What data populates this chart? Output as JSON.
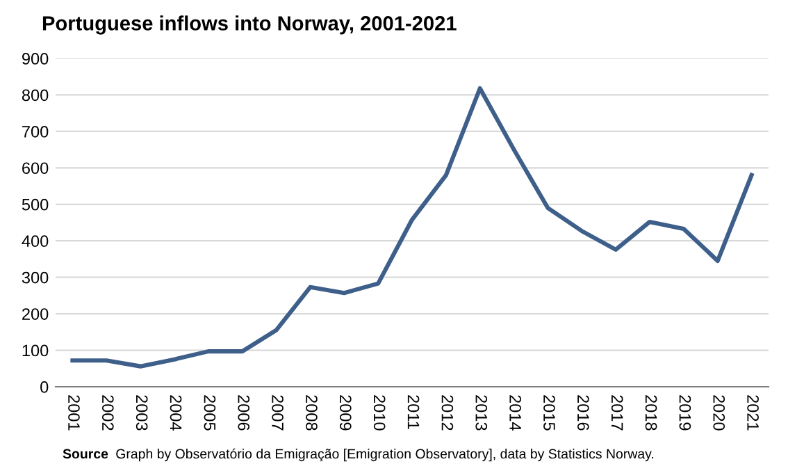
{
  "chart_data": {
    "type": "line",
    "title": "Portuguese inflows into Norway, 2001-2021",
    "categories": [
      "2001",
      "2002",
      "2003",
      "2004",
      "2005",
      "2006",
      "2007",
      "2008",
      "2009",
      "2010",
      "2011",
      "2012",
      "2013",
      "2014",
      "2015",
      "2016",
      "2017",
      "2018",
      "2019",
      "2020",
      "2021"
    ],
    "series": [
      {
        "color": "#3d5f8a",
        "values": [
          72,
          72,
          56,
          75,
          97,
          97,
          155,
          273,
          257,
          283,
          458,
          580,
          818,
          650,
          490,
          427,
          376,
          452,
          433,
          345,
          580
        ]
      }
    ],
    "ylim": [
      0,
      900
    ],
    "yticks": [
      0,
      100,
      200,
      300,
      400,
      500,
      600,
      700,
      800,
      900
    ],
    "grid": "y",
    "marker": "none",
    "line_style": "solid",
    "annotations": [
      "Source",
      "Graph by Observatório da Emigração [Emigration Observatory], data by Statistics Norway."
    ]
  }
}
